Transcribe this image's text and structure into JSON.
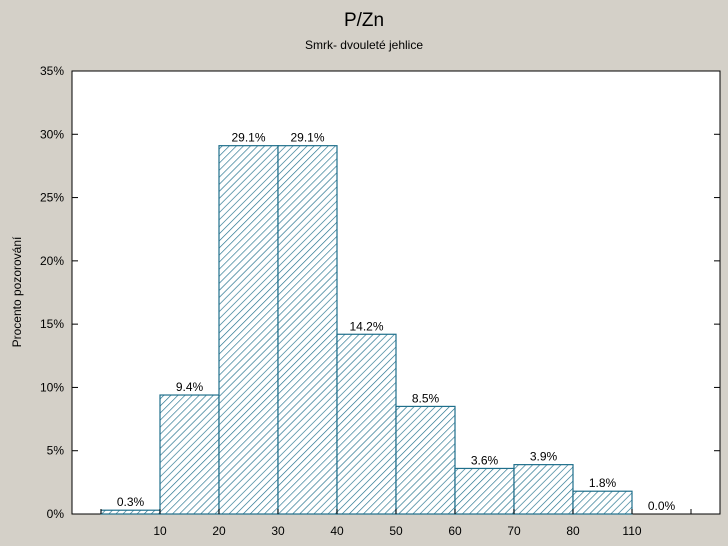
{
  "chart_data": {
    "type": "bar",
    "title": "P/Zn",
    "subtitle": "Smrk- dvouleté jehlice",
    "xlabel": "",
    "ylabel": "Procento pozorování",
    "ylim": [
      0,
      35
    ],
    "y_ticks": [
      "0%",
      "5%",
      "10%",
      "15%",
      "20%",
      "25%",
      "30%",
      "35%"
    ],
    "x_tick_labels": [
      "10",
      "20",
      "30",
      "40",
      "50",
      "60",
      "70",
      "80",
      "110"
    ],
    "bins": [
      "0-10",
      "10-20",
      "20-30",
      "30-40",
      "40-50",
      "50-60",
      "60-70",
      "70-80",
      "80-110",
      "110+"
    ],
    "values": [
      0.3,
      9.4,
      29.1,
      29.1,
      14.2,
      8.5,
      3.6,
      3.9,
      1.8,
      0.0
    ],
    "labels": [
      "0.3%",
      "9.4%",
      "29.1%",
      "29.1%",
      "14.2%",
      "8.5%",
      "3.6%",
      "3.9%",
      "1.8%",
      "0.0%"
    ],
    "grid": false,
    "bar_fill": "hatched",
    "bar_color": "#1f6f8b",
    "background": "#d4d0c8",
    "plot_background": "#ffffff"
  }
}
